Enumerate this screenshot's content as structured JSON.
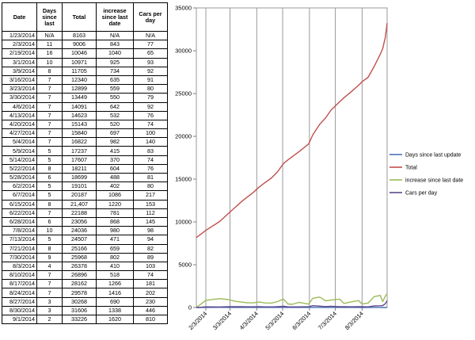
{
  "table": {
    "headers": [
      "Date",
      "Days since last",
      "Total",
      "increase since last date",
      "Cars per day"
    ],
    "rows": [
      [
        "1/23/2014",
        "N/A",
        "8163",
        "N/A",
        "N/A"
      ],
      [
        "2/3/2014",
        "11",
        "9006",
        "843",
        "77"
      ],
      [
        "2/19/2014",
        "16",
        "10046",
        "1040",
        "65"
      ],
      [
        "3/1/2014",
        "10",
        "10971",
        "925",
        "93"
      ],
      [
        "3/9/2014",
        "8",
        "11705",
        "734",
        "92"
      ],
      [
        "3/16/2014",
        "7",
        "12340",
        "635",
        "91"
      ],
      [
        "3/23/2014",
        "7",
        "12899",
        "559",
        "80"
      ],
      [
        "3/30/2014",
        "7",
        "13449",
        "550",
        "79"
      ],
      [
        "4/6/2014",
        "7",
        "14091",
        "642",
        "92"
      ],
      [
        "4/13/2014",
        "7",
        "14623",
        "532",
        "76"
      ],
      [
        "4/20/2014",
        "7",
        "15143",
        "520",
        "74"
      ],
      [
        "4/27/2014",
        "7",
        "15840",
        "697",
        "100"
      ],
      [
        "5/4/2014",
        "7",
        "16822",
        "982",
        "140"
      ],
      [
        "5/9/2014",
        "5",
        "17237",
        "415",
        "83"
      ],
      [
        "5/14/2014",
        "5",
        "17607",
        "370",
        "74"
      ],
      [
        "5/22/2014",
        "8",
        "18211",
        "604",
        "76"
      ],
      [
        "5/28/2014",
        "6",
        "18699",
        "488",
        "81"
      ],
      [
        "6/2/2014",
        "5",
        "19101",
        "402",
        "80"
      ],
      [
        "6/7/2014",
        "5",
        "20187",
        "1086",
        "217"
      ],
      [
        "6/15/2014",
        "8",
        "21,407",
        "1220",
        "153"
      ],
      [
        "6/22/2014",
        "7",
        "22188",
        "781",
        "112"
      ],
      [
        "6/28/2014",
        "6",
        "23056",
        "868",
        "145"
      ],
      [
        "7/8/2014",
        "10",
        "24036",
        "980",
        "98"
      ],
      [
        "7/13/2014",
        "5",
        "24507",
        "471",
        "94"
      ],
      [
        "7/21/2014",
        "8",
        "25166",
        "659",
        "82"
      ],
      [
        "7/30/2014",
        "9",
        "25968",
        "802",
        "89"
      ],
      [
        "8/3/2014",
        "4",
        "26378",
        "410",
        "103"
      ],
      [
        "8/10/2014",
        "7",
        "26896",
        "518",
        "74"
      ],
      [
        "8/17/2014",
        "7",
        "28162",
        "1266",
        "181"
      ],
      [
        "8/24/2014",
        "7",
        "29578",
        "1416",
        "202"
      ],
      [
        "8/27/2014",
        "3",
        "30268",
        "690",
        "230"
      ],
      [
        "8/30/2014",
        "3",
        "31606",
        "1338",
        "446"
      ],
      [
        "9/1/2014",
        "2",
        "33226",
        "1620",
        "810"
      ]
    ]
  },
  "chart_data": {
    "type": "line",
    "title": "",
    "xlabel": "",
    "ylabel": "",
    "ylim": [
      0,
      35000
    ],
    "ytick_labels": [
      "0",
      "5000",
      "10000",
      "15000",
      "20000",
      "25000",
      "30000",
      "35000"
    ],
    "ytick_values": [
      0,
      5000,
      10000,
      15000,
      20000,
      25000,
      30000,
      35000
    ],
    "xtick_labels": [
      "2/3/2014",
      "3/3/2014",
      "4/3/2014",
      "5/3/2014",
      "6/3/2014",
      "7/3/2014",
      "8/3/2014"
    ],
    "xtick_dates": [
      "2014-02-03",
      "2014-03-03",
      "2014-04-03",
      "2014-05-03",
      "2014-06-03",
      "2014-07-03",
      "2014-08-03"
    ],
    "xlim": [
      "2014-01-23",
      "2014-09-01"
    ],
    "grid": "vertical",
    "legend_position": "right",
    "x": [
      "2014-01-23",
      "2014-02-03",
      "2014-02-19",
      "2014-03-01",
      "2014-03-09",
      "2014-03-16",
      "2014-03-23",
      "2014-03-30",
      "2014-04-06",
      "2014-04-13",
      "2014-04-20",
      "2014-04-27",
      "2014-05-04",
      "2014-05-09",
      "2014-05-14",
      "2014-05-22",
      "2014-05-28",
      "2014-06-02",
      "2014-06-07",
      "2014-06-15",
      "2014-06-22",
      "2014-06-28",
      "2014-07-08",
      "2014-07-13",
      "2014-07-21",
      "2014-07-30",
      "2014-08-03",
      "2014-08-10",
      "2014-08-17",
      "2014-08-24",
      "2014-08-27",
      "2014-08-30",
      "2014-09-01"
    ],
    "series": [
      {
        "name": "Days since last update",
        "color": "#4a72b8",
        "values": [
          0,
          11,
          16,
          10,
          8,
          7,
          7,
          7,
          7,
          7,
          7,
          7,
          7,
          5,
          5,
          8,
          6,
          5,
          5,
          8,
          7,
          6,
          10,
          5,
          8,
          9,
          4,
          7,
          7,
          7,
          3,
          3,
          2
        ]
      },
      {
        "name": "Total",
        "color": "#c0504d",
        "values": [
          8163,
          9006,
          10046,
          10971,
          11705,
          12340,
          12899,
          13449,
          14091,
          14623,
          15143,
          15840,
          16822,
          17237,
          17607,
          18211,
          18699,
          19101,
          20187,
          21407,
          22188,
          23056,
          24036,
          24507,
          25166,
          25968,
          26378,
          26896,
          28162,
          29578,
          30268,
          31606,
          33226
        ]
      },
      {
        "name": "increase since last date",
        "color": "#9bbb59",
        "values": [
          0,
          843,
          1040,
          925,
          734,
          635,
          559,
          550,
          642,
          532,
          520,
          697,
          982,
          415,
          370,
          604,
          488,
          402,
          1086,
          1220,
          781,
          868,
          980,
          471,
          659,
          802,
          410,
          518,
          1266,
          1416,
          690,
          1338,
          1620
        ]
      },
      {
        "name": "Cars per day",
        "color": "#5c4a8c",
        "values": [
          0,
          77,
          65,
          93,
          92,
          91,
          80,
          79,
          92,
          76,
          74,
          100,
          140,
          83,
          74,
          76,
          81,
          80,
          217,
          153,
          112,
          145,
          98,
          94,
          82,
          89,
          103,
          74,
          181,
          202,
          230,
          446,
          810
        ]
      }
    ]
  }
}
